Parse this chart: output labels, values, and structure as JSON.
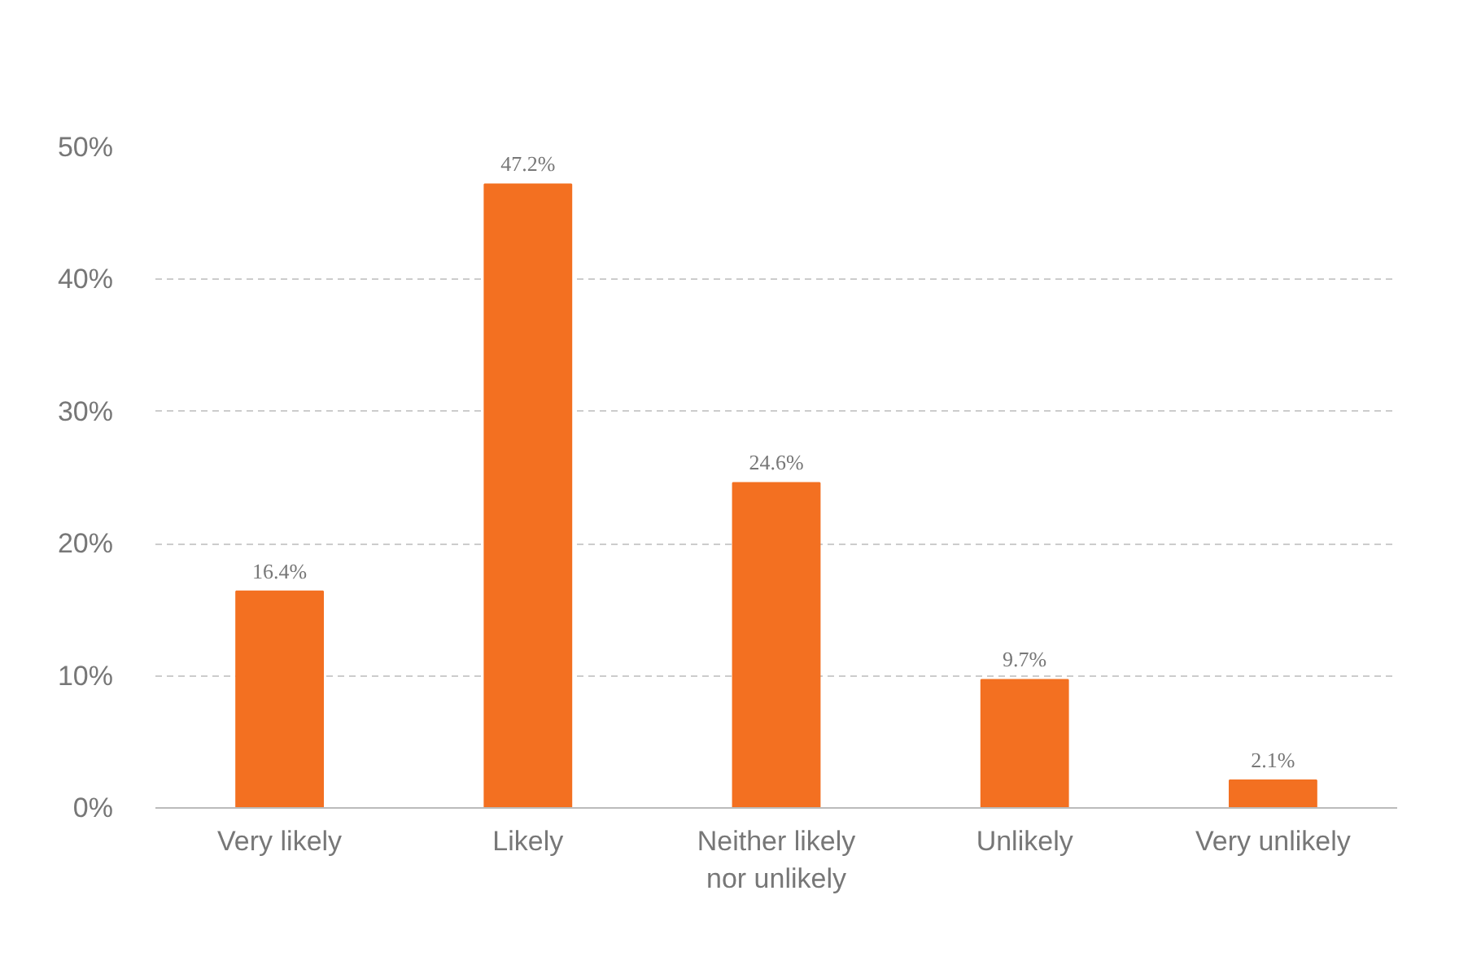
{
  "chart_data": {
    "type": "bar",
    "categories": [
      "Very likely",
      "Likely",
      "Neither likely nor unlikely",
      "Unlikely",
      "Very unlikely"
    ],
    "values": [
      16.4,
      47.2,
      24.6,
      9.7,
      2.1
    ],
    "value_labels": [
      "16.4%",
      "47.2%",
      "24.6%",
      "9.7%",
      "2.1%"
    ],
    "color": "#f37021",
    "ylim": [
      0,
      50
    ],
    "yticks": [
      {
        "value": 0,
        "label": "0%"
      },
      {
        "value": 10,
        "label": "10%"
      },
      {
        "value": 20,
        "label": "20%"
      },
      {
        "value": 30,
        "label": "30%"
      },
      {
        "value": 40,
        "label": "40%"
      },
      {
        "value": 50,
        "label": "50%"
      }
    ],
    "grid": "y"
  }
}
